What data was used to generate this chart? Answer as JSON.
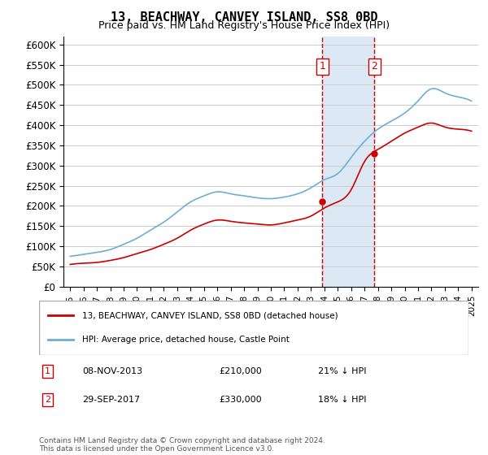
{
  "title": "13, BEACHWAY, CANVEY ISLAND, SS8 0BD",
  "subtitle": "Price paid vs. HM Land Registry's House Price Index (HPI)",
  "legend_line1": "13, BEACHWAY, CANVEY ISLAND, SS8 0BD (detached house)",
  "legend_line2": "HPI: Average price, detached house, Castle Point",
  "transaction1_label": "1",
  "transaction1_date": "08-NOV-2013",
  "transaction1_price": "£210,000",
  "transaction1_hpi": "21% ↓ HPI",
  "transaction2_label": "2",
  "transaction2_date": "29-SEP-2017",
  "transaction2_price": "£330,000",
  "transaction2_hpi": "18% ↓ HPI",
  "footer": "Contains HM Land Registry data © Crown copyright and database right 2024.\nThis data is licensed under the Open Government Licence v3.0.",
  "hpi_color": "#6baed6",
  "price_color": "#cc0000",
  "highlight_color": "#dce9f5",
  "transaction1_x": 2013.85,
  "transaction2_x": 2017.75,
  "ylim_min": 0,
  "ylim_max": 620000,
  "xlim_min": 1994.5,
  "xlim_max": 2025.5
}
